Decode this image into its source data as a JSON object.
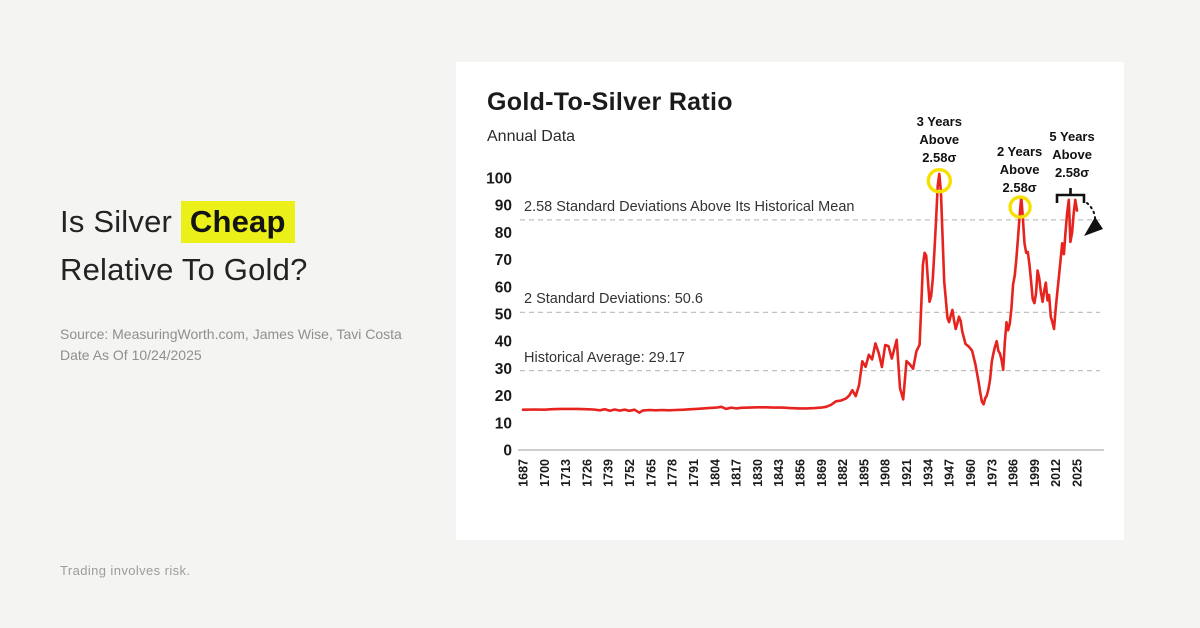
{
  "left_panel": {
    "headline_prefix": "Is Silver ",
    "headline_highlight": "Cheap",
    "headline_line2": "Relative To Gold?",
    "source_line1": "Source: MeasuringWorth.com, James Wise, Tavi Costa",
    "source_line2": "Date As Of 10/24/2025",
    "disclaimer": "Trading involves risk.",
    "highlight_color": "#ebf018"
  },
  "chart_data": {
    "type": "line",
    "title": "Gold-To-Silver Ratio",
    "subtitle": "Annual Data",
    "xlabel": "",
    "ylabel": "",
    "ylim": [
      0,
      105
    ],
    "y_ticks": [
      0,
      10,
      20,
      30,
      40,
      50,
      60,
      70,
      80,
      90,
      100
    ],
    "x_ticks": [
      1687,
      1700,
      1713,
      1726,
      1739,
      1752,
      1765,
      1778,
      1791,
      1804,
      1817,
      1830,
      1843,
      1856,
      1869,
      1882,
      1895,
      1908,
      1921,
      1934,
      1947,
      1960,
      1973,
      1986,
      1999,
      2012,
      2025
    ],
    "grid": "off",
    "legend": "none",
    "line_color": "#e6231e",
    "reference_lines": [
      {
        "value": 84.6,
        "label": "2.58 Standard Deviations Above Its Historical Mean"
      },
      {
        "value": 50.6,
        "label": "2 Standard Deviations: 50.6"
      },
      {
        "value": 29.17,
        "label": "Historical Average: 29.17"
      }
    ],
    "annotations": [
      {
        "year": 1941,
        "lines": "3 Years\nAbove\n2.58σ",
        "top": 51
      },
      {
        "year": 1990,
        "lines": "2 Years\nAbove\n2.58σ",
        "top": 81
      },
      {
        "year": 2022,
        "lines": "5 Years\nAbove\n2.58σ",
        "top": 66
      }
    ],
    "highlight_circles": [
      {
        "year": 1941,
        "value": 99.0,
        "r": 11
      },
      {
        "year": 1990.3,
        "value": 89.3,
        "r": 10
      }
    ],
    "circle_color": "#f5e000",
    "series": [
      {
        "name": "Gold-to-silver ratio (annual)",
        "points": [
          [
            1687,
            14.8
          ],
          [
            1695,
            14.9
          ],
          [
            1700,
            14.8
          ],
          [
            1705,
            15.0
          ],
          [
            1710,
            15.1
          ],
          [
            1715,
            15.1
          ],
          [
            1720,
            15.1
          ],
          [
            1725,
            15.0
          ],
          [
            1730,
            14.9
          ],
          [
            1734,
            14.6
          ],
          [
            1737,
            15.0
          ],
          [
            1740,
            14.4
          ],
          [
            1743,
            14.9
          ],
          [
            1746,
            14.5
          ],
          [
            1749,
            14.8
          ],
          [
            1752,
            14.4
          ],
          [
            1755,
            14.8
          ],
          [
            1758,
            13.7
          ],
          [
            1760,
            14.5
          ],
          [
            1764,
            14.7
          ],
          [
            1768,
            14.6
          ],
          [
            1772,
            14.7
          ],
          [
            1776,
            14.6
          ],
          [
            1780,
            14.7
          ],
          [
            1785,
            14.8
          ],
          [
            1790,
            15.0
          ],
          [
            1795,
            15.2
          ],
          [
            1800,
            15.4
          ],
          [
            1805,
            15.6
          ],
          [
            1808,
            15.9
          ],
          [
            1811,
            15.1
          ],
          [
            1814,
            15.6
          ],
          [
            1817,
            15.3
          ],
          [
            1820,
            15.5
          ],
          [
            1825,
            15.6
          ],
          [
            1830,
            15.7
          ],
          [
            1835,
            15.7
          ],
          [
            1840,
            15.6
          ],
          [
            1845,
            15.6
          ],
          [
            1850,
            15.4
          ],
          [
            1855,
            15.3
          ],
          [
            1860,
            15.3
          ],
          [
            1865,
            15.4
          ],
          [
            1869,
            15.6
          ],
          [
            1872,
            15.9
          ],
          [
            1875,
            16.6
          ],
          [
            1878,
            17.9
          ],
          [
            1881,
            18.2
          ],
          [
            1884,
            18.9
          ],
          [
            1886,
            20.0
          ],
          [
            1888,
            22.0
          ],
          [
            1890,
            19.8
          ],
          [
            1892,
            23.7
          ],
          [
            1894,
            32.6
          ],
          [
            1895,
            31.6
          ],
          [
            1896,
            30.6
          ],
          [
            1898,
            35.0
          ],
          [
            1900,
            33.3
          ],
          [
            1902,
            39.2
          ],
          [
            1904,
            35.7
          ],
          [
            1906,
            30.5
          ],
          [
            1908,
            38.6
          ],
          [
            1910,
            38.2
          ],
          [
            1912,
            33.6
          ],
          [
            1915,
            40.5
          ],
          [
            1917,
            22.7
          ],
          [
            1919,
            18.6
          ],
          [
            1921,
            32.7
          ],
          [
            1923,
            31.5
          ],
          [
            1925,
            29.9
          ],
          [
            1927,
            36.3
          ],
          [
            1929,
            38.7
          ],
          [
            1930,
            53.5
          ],
          [
            1931,
            68.0
          ],
          [
            1932,
            72.5
          ],
          [
            1933,
            71.5
          ],
          [
            1934,
            63.0
          ],
          [
            1935,
            54.5
          ],
          [
            1936,
            56.5
          ],
          [
            1937,
            63.0
          ],
          [
            1938,
            73.0
          ],
          [
            1939,
            84.0
          ],
          [
            1940,
            97.0
          ],
          [
            1941,
            101.5
          ],
          [
            1942,
            95.0
          ],
          [
            1943,
            78.0
          ],
          [
            1944,
            62.0
          ],
          [
            1945,
            55.0
          ],
          [
            1946,
            48.5
          ],
          [
            1947,
            47.0
          ],
          [
            1948,
            49.5
          ],
          [
            1949,
            51.5
          ],
          [
            1950,
            47.5
          ],
          [
            1951,
            44.5
          ],
          [
            1952,
            46.5
          ],
          [
            1953,
            49.0
          ],
          [
            1954,
            47.5
          ],
          [
            1955,
            43.5
          ],
          [
            1957,
            39.0
          ],
          [
            1959,
            38.0
          ],
          [
            1961,
            36.5
          ],
          [
            1963,
            31.5
          ],
          [
            1965,
            25.0
          ],
          [
            1966,
            21.0
          ],
          [
            1967,
            17.8
          ],
          [
            1968,
            16.8
          ],
          [
            1969,
            19.0
          ],
          [
            1970,
            20.0
          ],
          [
            1971,
            22.5
          ],
          [
            1972,
            26.0
          ],
          [
            1973,
            32.5
          ],
          [
            1974,
            35.5
          ],
          [
            1975,
            38.0
          ],
          [
            1976,
            40.0
          ],
          [
            1977,
            36.5
          ],
          [
            1978,
            35.5
          ],
          [
            1979,
            33.0
          ],
          [
            1980,
            29.5
          ],
          [
            1981,
            40.0
          ],
          [
            1982,
            47.0
          ],
          [
            1983,
            44.0
          ],
          [
            1984,
            46.5
          ],
          [
            1985,
            52.0
          ],
          [
            1986,
            61.0
          ],
          [
            1987,
            64.0
          ],
          [
            1988,
            70.0
          ],
          [
            1989,
            78.0
          ],
          [
            1990,
            86.0
          ],
          [
            1991,
            93.0
          ],
          [
            1992,
            85.0
          ],
          [
            1993,
            76.0
          ],
          [
            1994,
            72.5
          ],
          [
            1995,
            72.8
          ],
          [
            1996,
            68.0
          ],
          [
            1997,
            62.0
          ],
          [
            1998,
            55.5
          ],
          [
            1999,
            54.0
          ],
          [
            2000,
            57.5
          ],
          [
            2001,
            66.0
          ],
          [
            2002,
            63.0
          ],
          [
            2003,
            58.0
          ],
          [
            2004,
            54.5
          ],
          [
            2005,
            58.5
          ],
          [
            2006,
            61.5
          ],
          [
            2007,
            55.0
          ],
          [
            2008,
            57.0
          ],
          [
            2009,
            49.0
          ],
          [
            2010,
            47.0
          ],
          [
            2011,
            44.5
          ],
          [
            2012,
            52.0
          ],
          [
            2013,
            58.0
          ],
          [
            2014,
            64.0
          ],
          [
            2015,
            70.0
          ],
          [
            2016,
            76.0
          ],
          [
            2017,
            72.0
          ],
          [
            2018,
            80.0
          ],
          [
            2019,
            87.0
          ],
          [
            2020,
            92.0
          ],
          [
            2021,
            76.5
          ],
          [
            2022,
            80.0
          ],
          [
            2023,
            87.0
          ],
          [
            2024,
            92.0
          ],
          [
            2025,
            88.0
          ]
        ]
      }
    ]
  }
}
